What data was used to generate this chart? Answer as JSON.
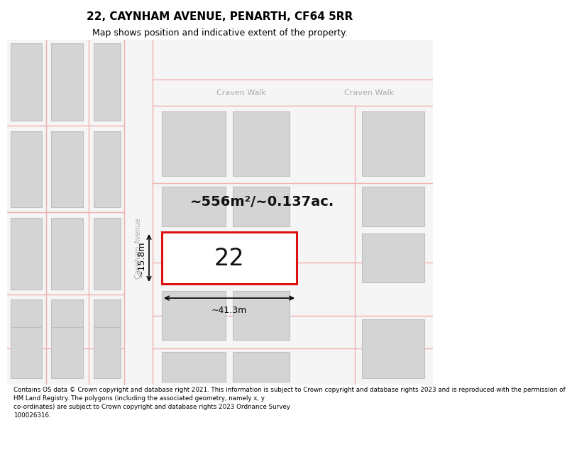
{
  "title": "22, CAYNHAM AVENUE, PENARTH, CF64 5RR",
  "subtitle": "Map shows position and indicative extent of the property.",
  "footer": "Contains OS data © Crown copyright and database right 2021. This information is subject to Crown copyright and database rights 2023 and is reproduced with the permission of\nHM Land Registry. The polygons (including the associated geometry, namely x, y\nco-ordinates) are subject to Crown copyright and database rights 2023 Ordnance Survey\n100026316.",
  "map_bg": "#f5f5f5",
  "road_color": "#f0b0b0",
  "building_fill": "#d4d4d4",
  "building_edge": "#c0c0c0",
  "highlight_fill": "#ffffff",
  "highlight_edge": "#dd1111",
  "street_label_color": "#aaaaaa",
  "area_label": "~556m²/~0.137ac.",
  "property_number": "22",
  "dim_width": "~41.3m",
  "dim_height": "~15.8m",
  "street_name_v": "Caynham Avenue",
  "street_name_h1": "Craven Walk",
  "street_name_h2": "Craven Walk",
  "title_fontsize": 11,
  "subtitle_fontsize": 9,
  "area_fontsize": 14,
  "number_fontsize": 24,
  "dim_fontsize": 9,
  "street_fontsize": 8,
  "footer_fontsize": 6.3
}
